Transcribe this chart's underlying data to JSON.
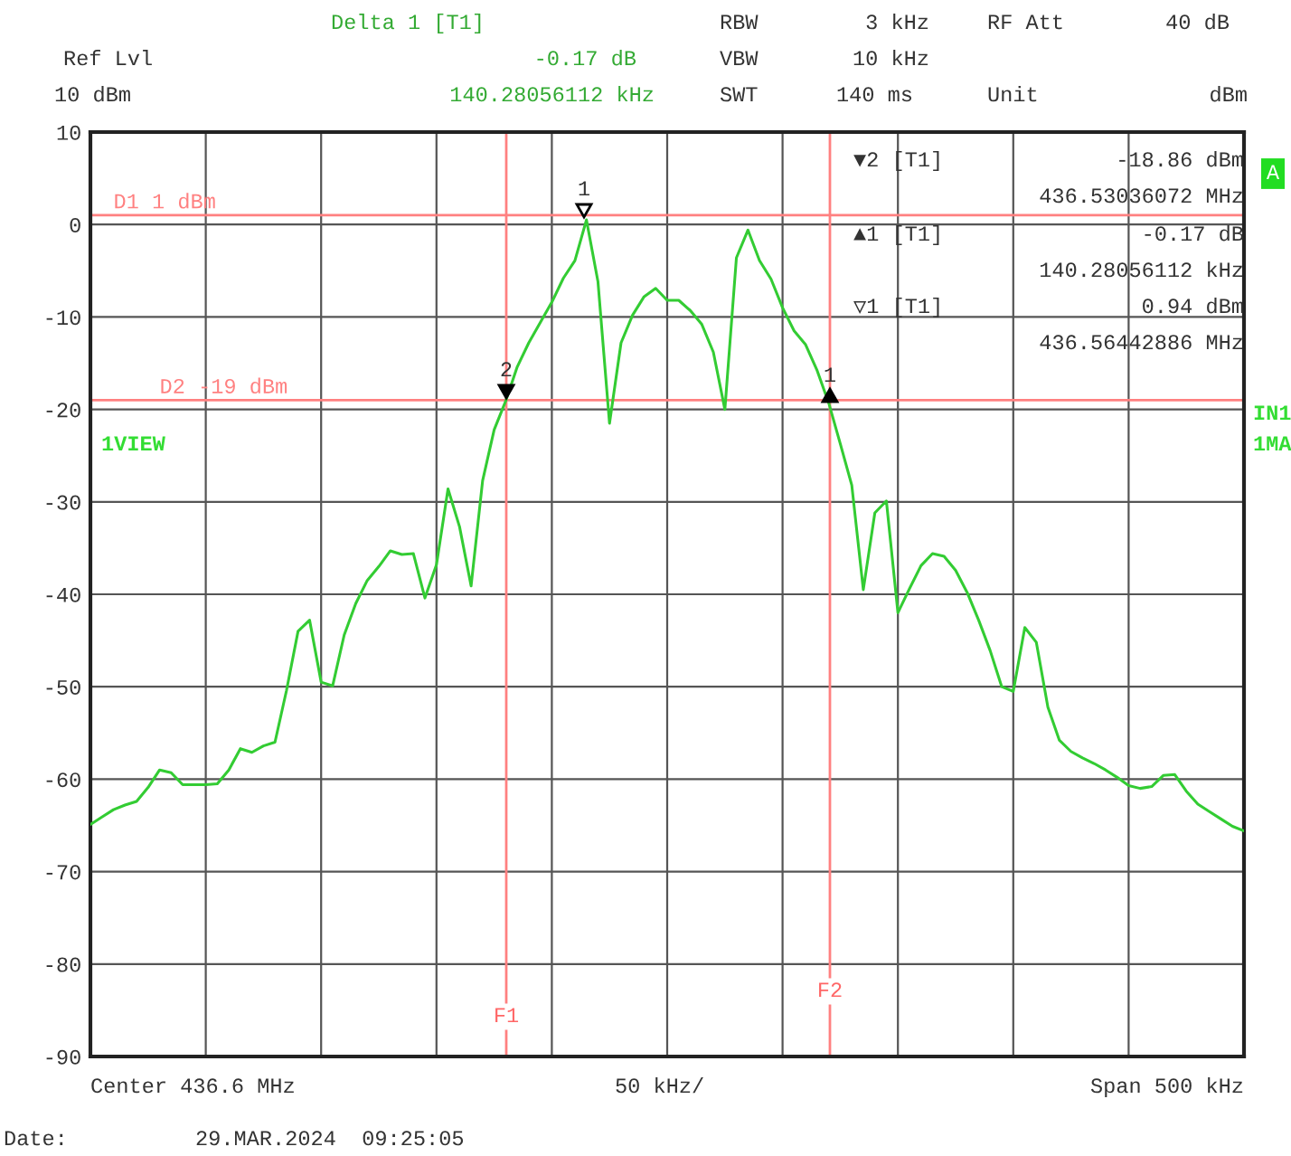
{
  "chart_data": {
    "type": "line",
    "categories": [
      null,
      null,
      null,
      null,
      null,
      null,
      null,
      null,
      null,
      null,
      null,
      null,
      null,
      null,
      null,
      null,
      null,
      null,
      null,
      null,
      null,
      null,
      null,
      null,
      null,
      null,
      null,
      null,
      null,
      null,
      null,
      null,
      null,
      null,
      null,
      null,
      null,
      null,
      null,
      null,
      null,
      null,
      null,
      null,
      null,
      null,
      null,
      null,
      null,
      null,
      null,
      null,
      null,
      null,
      null,
      null,
      null,
      null,
      null,
      null,
      null,
      null,
      null,
      null,
      null,
      null,
      null,
      null,
      null,
      null,
      null,
      null,
      null,
      null,
      null,
      null,
      null,
      null,
      null,
      null,
      null,
      null,
      null,
      null,
      null,
      null,
      null,
      null,
      null,
      null,
      null,
      null,
      null,
      null,
      null,
      null,
      null,
      null,
      null,
      null,
      null
    ],
    "ylim": [
      -90,
      10
    ],
    "yticks": [
      -90,
      -80,
      -70,
      -60,
      -50,
      -40,
      -30,
      -20,
      -10,
      0,
      10
    ],
    "grid": true,
    "series": [
      {
        "color": "#33cc33",
        "values": [
          -64.9,
          -64.1,
          -63.3,
          -62.8,
          -62.4,
          -60.9,
          -59.0,
          -59.3,
          -60.6,
          -60.6,
          -60.6,
          -60.5,
          -59.0,
          -56.7,
          -57.1,
          -56.4,
          -56.0,
          -50.4,
          -44.0,
          -42.8,
          -49.5,
          -49.9,
          -44.4,
          -41.0,
          -38.5,
          -37.0,
          -35.3,
          -35.7,
          -35.6,
          -40.4,
          -36.8,
          -28.6,
          -32.7,
          -39.1,
          -27.7,
          -22.2,
          -19.1,
          -15.4,
          -12.8,
          -10.6,
          -8.4,
          -5.8,
          -3.9,
          0.5,
          -6.2,
          -21.5,
          -12.8,
          -9.8,
          -7.8,
          -6.9,
          -8.2,
          -8.2,
          -9.3,
          -10.8,
          -13.8,
          -20.0,
          -3.6,
          -0.6,
          -3.9,
          -5.9,
          -9.0,
          -11.5,
          -13.0,
          -15.8,
          -19.3,
          -23.7,
          -28.2,
          -39.5,
          -31.2,
          -29.9,
          -42.0,
          -39.4,
          -36.9,
          -35.6,
          -35.9,
          -37.4,
          -39.8,
          -42.8,
          -46.1,
          -50.0,
          -50.5,
          -43.6,
          -45.2,
          -52.2,
          -55.8,
          -57.0,
          -57.7,
          -58.3,
          -59.0,
          -59.8,
          -60.7,
          -61.0,
          -60.8,
          -59.6,
          -59.5,
          -61.3,
          -62.7,
          -63.5,
          -64.3,
          -65.1,
          -65.6
        ]
      }
    ],
    "ref_lines": [
      {
        "axis": "y",
        "value": 1,
        "label": "D1 1 dBm",
        "color": "#ff8080"
      },
      {
        "axis": "y",
        "value": -19,
        "label": "D2 -19 dBm",
        "color": "#ff8080"
      }
    ],
    "annotations": [
      "Delta 1 [T1]",
      "Ref Lvl",
      "-0.17 dB",
      "10 dBm",
      "140.28056112 kHz",
      "RBW",
      "3 kHz",
      "RF Att",
      "40 dB",
      "VBW",
      "10 kHz",
      "SWT",
      "140 ms",
      "Unit",
      "dBm",
      "▼2 [T1]",
      "-18.86 dBm",
      "436.53036072 MHz",
      "▲1 [T1]",
      "-0.17 dB",
      "140.28056112 kHz",
      "▽1 [T1]",
      "0.94 dBm",
      "436.56442886 MHz",
      "1VIEW",
      "A",
      "IN1",
      "1MA",
      "Center 436.6 MHz",
      "50 kHz/",
      "Span 500 kHz",
      "Date:",
      "29.MAR.2024  09:25:05",
      "2",
      "1",
      "1",
      "F1",
      "F2"
    ]
  }
}
